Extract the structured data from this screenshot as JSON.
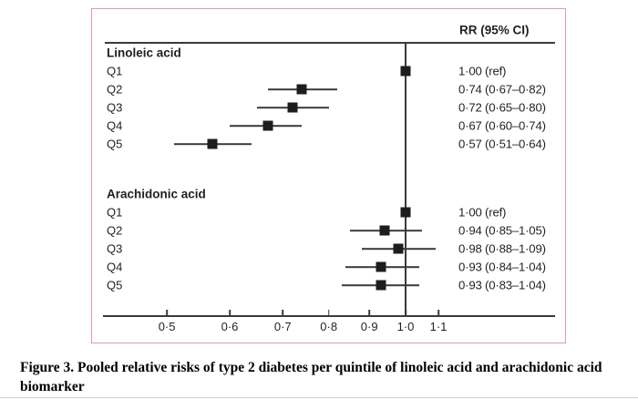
{
  "caption": {
    "text": "Figure 3. Pooled relative risks of type 2 diabetes per quintile of linoleic acid and arachidonic acid biomarker"
  },
  "colors": {
    "box_border": "#e596ad",
    "marker": "#1f1c1d",
    "line": "#3b3a3a",
    "text": "#231f20"
  },
  "chart_data": {
    "type": "scatter",
    "subtype": "forest-plot",
    "title": "RR (95% CI)",
    "x_scale": "log",
    "xlim": [
      0.42,
      1.55
    ],
    "reference_line": 1.0,
    "x_ticks": [
      0.5,
      0.6,
      0.7,
      0.8,
      0.9,
      1.0,
      1.1
    ],
    "x_tick_labels": [
      "0·5",
      "0·6",
      "0·7",
      "0·8",
      "0·9",
      "1·0",
      "1·1"
    ],
    "grid": false,
    "legend": false,
    "marker_shape": "square",
    "groups": [
      {
        "label": "Linoleic acid",
        "rows": [
          {
            "label": "Q1",
            "rr": 1.0,
            "lo": null,
            "hi": null,
            "rr_text": "1·00 (ref)"
          },
          {
            "label": "Q2",
            "rr": 0.74,
            "lo": 0.67,
            "hi": 0.82,
            "rr_text": "0·74 (0·67–0·82)"
          },
          {
            "label": "Q3",
            "rr": 0.72,
            "lo": 0.65,
            "hi": 0.8,
            "rr_text": "0·72 (0·65–0·80)"
          },
          {
            "label": "Q4",
            "rr": 0.67,
            "lo": 0.6,
            "hi": 0.74,
            "rr_text": "0·67 (0·60–0·74)"
          },
          {
            "label": "Q5",
            "rr": 0.57,
            "lo": 0.51,
            "hi": 0.64,
            "rr_text": "0·57 (0·51–0·64)"
          }
        ]
      },
      {
        "label": "Arachidonic acid",
        "rows": [
          {
            "label": "Q1",
            "rr": 1.0,
            "lo": null,
            "hi": null,
            "rr_text": "1·00 (ref)"
          },
          {
            "label": "Q2",
            "rr": 0.94,
            "lo": 0.85,
            "hi": 1.05,
            "rr_text": "0·94 (0·85–1·05)"
          },
          {
            "label": "Q3",
            "rr": 0.98,
            "lo": 0.88,
            "hi": 1.09,
            "rr_text": "0·98 (0·88–1·09)"
          },
          {
            "label": "Q4",
            "rr": 0.93,
            "lo": 0.84,
            "hi": 1.04,
            "rr_text": "0·93 (0·84–1·04)"
          },
          {
            "label": "Q5",
            "rr": 0.93,
            "lo": 0.83,
            "hi": 1.04,
            "rr_text": "0·93 (0·83–1·04)"
          }
        ]
      }
    ]
  }
}
